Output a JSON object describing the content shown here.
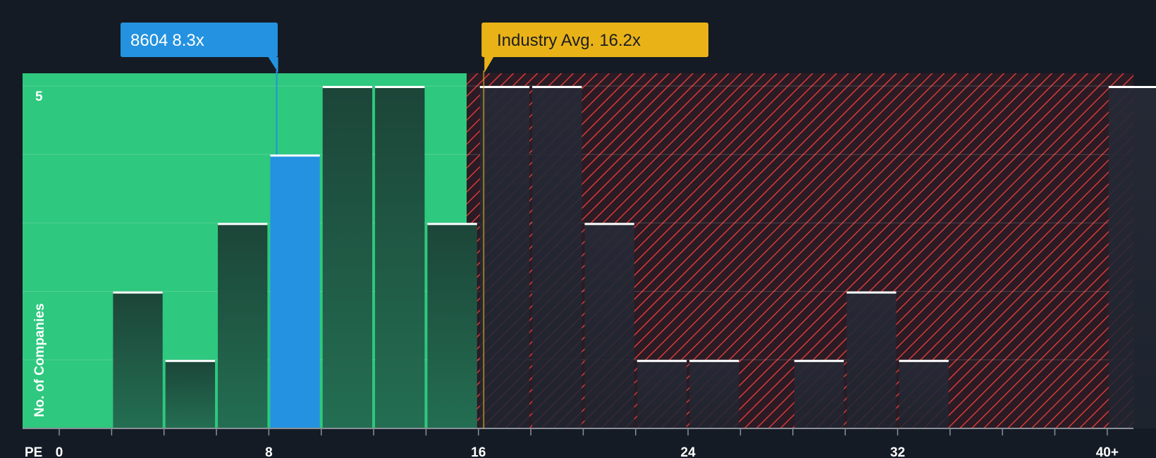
{
  "chart_data": {
    "type": "bar",
    "title": "",
    "xlabel": "PE",
    "ylabel": "No. of Companies",
    "ylim": [
      0,
      5
    ],
    "y_ticks": [
      5
    ],
    "x_ticks": [
      {
        "value": 0,
        "label": "0"
      },
      {
        "value": 8,
        "label": "8"
      },
      {
        "value": 16,
        "label": "16"
      },
      {
        "value": 24,
        "label": "24"
      },
      {
        "value": 32,
        "label": "32"
      },
      {
        "value": 40,
        "label": "40+"
      }
    ],
    "bin_width": 2,
    "bins": [
      {
        "start": 2,
        "end": 4,
        "count": 2,
        "zone": "below"
      },
      {
        "start": 4,
        "end": 6,
        "count": 1,
        "zone": "below"
      },
      {
        "start": 6,
        "end": 8,
        "count": 3,
        "zone": "below"
      },
      {
        "start": 8,
        "end": 10,
        "count": 4,
        "zone": "company"
      },
      {
        "start": 10,
        "end": 12,
        "count": 5,
        "zone": "below"
      },
      {
        "start": 12,
        "end": 14,
        "count": 5,
        "zone": "below"
      },
      {
        "start": 14,
        "end": 16,
        "count": 3,
        "zone": "below"
      },
      {
        "start": 16,
        "end": 18,
        "count": 5,
        "zone": "above"
      },
      {
        "start": 18,
        "end": 20,
        "count": 5,
        "zone": "above"
      },
      {
        "start": 20,
        "end": 22,
        "count": 3,
        "zone": "above"
      },
      {
        "start": 22,
        "end": 24,
        "count": 1,
        "zone": "above"
      },
      {
        "start": 24,
        "end": 26,
        "count": 1,
        "zone": "above"
      },
      {
        "start": 26,
        "end": 28,
        "count": 0,
        "zone": "above"
      },
      {
        "start": 28,
        "end": 30,
        "count": 1,
        "zone": "above"
      },
      {
        "start": 30,
        "end": 32,
        "count": 2,
        "zone": "above"
      },
      {
        "start": 32,
        "end": 34,
        "count": 1,
        "zone": "above"
      },
      {
        "start": 34,
        "end": 36,
        "count": 0,
        "zone": "above"
      },
      {
        "start": 36,
        "end": 38,
        "count": 0,
        "zone": "above"
      },
      {
        "start": 38,
        "end": 40,
        "count": 0,
        "zone": "above"
      },
      {
        "start": 40,
        "end": 42,
        "count": 5,
        "zone": "above"
      }
    ],
    "company": {
      "ticker": "8604",
      "value_label": "8.3x",
      "pe": 8.3
    },
    "industry_avg": {
      "label": "Industry Avg.",
      "value_label": "16.2x",
      "pe": 16.2
    },
    "x_range": [
      -1.4,
      41
    ],
    "colors": {
      "background": "#151b24",
      "below_zone": "#2ec87e",
      "above_zone": "#2a1b24",
      "hatch": "#d83a3a",
      "bar_dark": "#1e4a3d",
      "bar_company": "#2492e0",
      "bar_above": "#252a36",
      "cap": "#ffffff",
      "company_callout": "#2492e0",
      "industry_callout": "#e9b318",
      "industry_text": "#1d1d1d"
    }
  }
}
